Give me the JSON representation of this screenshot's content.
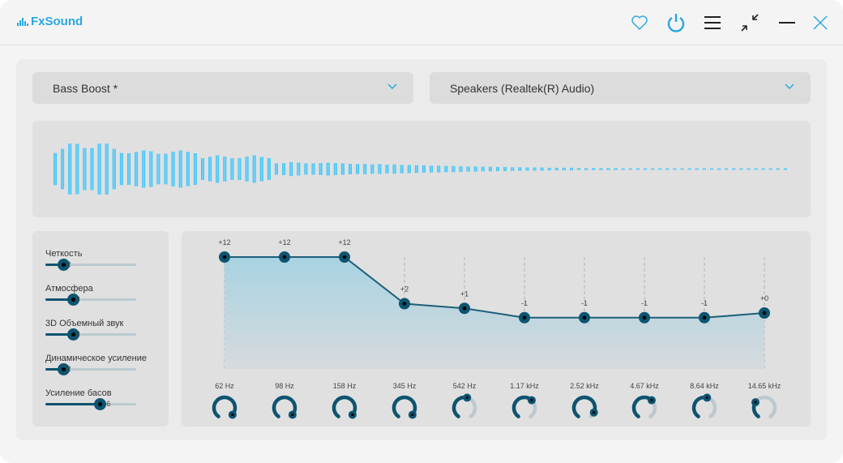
{
  "app": {
    "title": "FxSound"
  },
  "titlebar": {
    "icons": [
      "heart-icon",
      "power-icon",
      "menu-icon",
      "minimize-view-icon",
      "minimize-icon",
      "close-icon"
    ]
  },
  "colors": {
    "accent": "#2aa7e0",
    "dark": "#0d5470",
    "wave": "#4cc4f5"
  },
  "preset": {
    "value": "Bass Boost *"
  },
  "device": {
    "value": "Speakers (Realtek(R) Audio)"
  },
  "waveform": {
    "levels": [
      0.62,
      0.78,
      0.98,
      0.97,
      0.81,
      0.81,
      0.98,
      0.98,
      0.78,
      0.62,
      0.61,
      0.66,
      0.72,
      0.69,
      0.59,
      0.59,
      0.67,
      0.72,
      0.66,
      0.61,
      0.42,
      0.47,
      0.53,
      0.48,
      0.42,
      0.42,
      0.48,
      0.53,
      0.47,
      0.42,
      0.22,
      0.23,
      0.27,
      0.25,
      0.22,
      0.22,
      0.23,
      0.25,
      0.23,
      0.22,
      0.2,
      0.19,
      0.2,
      0.18,
      0.19,
      0.17,
      0.18,
      0.16,
      0.16,
      0.15,
      0.14,
      0.13,
      0.13,
      0.12,
      0.12,
      0.11,
      0.1,
      0.1,
      0.09,
      0.09,
      0.08,
      0.08,
      0.07,
      0.07,
      0.06,
      0.06,
      0.06,
      0.05,
      0.05,
      0.05,
      0.05,
      0.04,
      0.04,
      0.04,
      0.04,
      0.04,
      0.04,
      0.03,
      0.03,
      0.03,
      0.03,
      0.03,
      0.03,
      0.03,
      0.03,
      0.03,
      0.03,
      0.03,
      0.03,
      0.03,
      0.03,
      0.03,
      0.03,
      0.03,
      0.03,
      0.03,
      0.03,
      0.03,
      0.03,
      0.03
    ]
  },
  "effects": [
    {
      "label": "Четкость",
      "value": "2",
      "level": 2
    },
    {
      "label": "Атмосфера",
      "value": "3",
      "level": 3
    },
    {
      "label": "3D Объемный звук",
      "value": "3",
      "level": 3
    },
    {
      "label": "Динамическое усиление",
      "value": "2",
      "level": 2
    },
    {
      "label": "Усиление басов",
      "value": "6",
      "level": 6
    }
  ],
  "effects_max": 10,
  "eq": {
    "range": [
      -12,
      12
    ],
    "bands": [
      {
        "freq": "62 Hz",
        "gain_label": "+12",
        "gain": 12,
        "knob": 0.95
      },
      {
        "freq": "98 Hz",
        "gain_label": "+12",
        "gain": 12,
        "knob": 0.95
      },
      {
        "freq": "158 Hz",
        "gain_label": "+12",
        "gain": 12,
        "knob": 0.95
      },
      {
        "freq": "345 Hz",
        "gain_label": "+2",
        "gain": 2,
        "knob": 0.95
      },
      {
        "freq": "542 Hz",
        "gain_label": "+1",
        "gain": 1,
        "knob": 0.55
      },
      {
        "freq": "1.17 kHz",
        "gain_label": "-1",
        "gain": -1,
        "knob": 0.65
      },
      {
        "freq": "2.52 kHz",
        "gain_label": "-1",
        "gain": -1,
        "knob": 0.9
      },
      {
        "freq": "4.67 kHz",
        "gain_label": "-1",
        "gain": -1,
        "knob": 0.65
      },
      {
        "freq": "8.64 kHz",
        "gain_label": "-1",
        "gain": -1,
        "knob": 0.55
      },
      {
        "freq": "14.65 kHz",
        "gain_label": "+0",
        "gain": 0,
        "knob": 0.3
      }
    ]
  }
}
